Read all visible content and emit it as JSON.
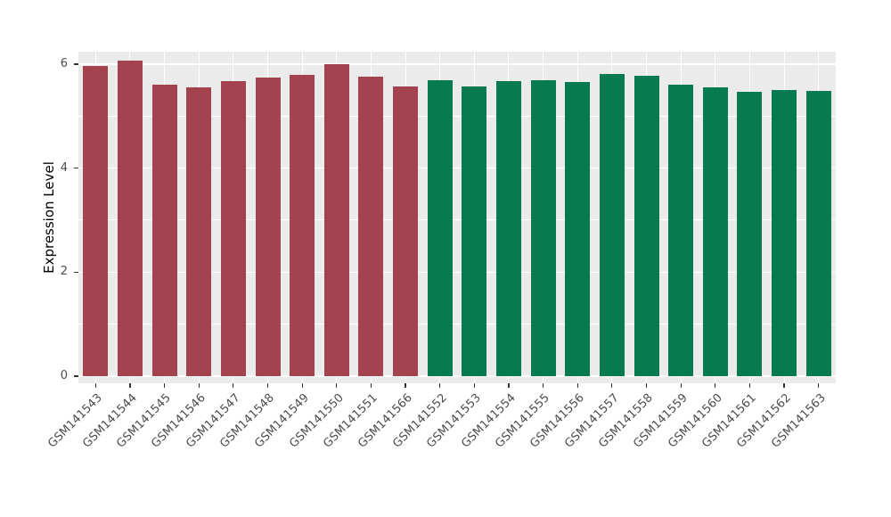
{
  "figure": {
    "background": "#FFFFFF"
  },
  "chart_data": {
    "type": "bar",
    "title": "",
    "xlabel": "",
    "ylabel": "Expression Level",
    "categories": [
      "GSM141543",
      "GSM141544",
      "GSM141545",
      "GSM141546",
      "GSM141547",
      "GSM141548",
      "GSM141549",
      "GSM141550",
      "GSM141551",
      "GSM141566",
      "GSM141552",
      "GSM141553",
      "GSM141554",
      "GSM141555",
      "GSM141556",
      "GSM141557",
      "GSM141558",
      "GSM141559",
      "GSM141560",
      "GSM141561",
      "GSM141562",
      "GSM141563"
    ],
    "values": [
      5.97,
      6.07,
      5.6,
      5.55,
      5.68,
      5.74,
      5.79,
      6.0,
      5.76,
      5.58,
      5.69,
      5.57,
      5.67,
      5.7,
      5.65,
      5.82,
      5.77,
      5.61,
      5.55,
      5.47,
      5.51,
      5.49
    ],
    "bar_groups": [
      "group1",
      "group1",
      "group1",
      "group1",
      "group1",
      "group1",
      "group1",
      "group1",
      "group1",
      "group1",
      "group2",
      "group2",
      "group2",
      "group2",
      "group2",
      "group2",
      "group2",
      "group2",
      "group2",
      "group2",
      "group2",
      "group2"
    ],
    "group_colors": {
      "group1": "#A2434F",
      "group2": "#077A4F"
    },
    "ylim": [
      0,
      6.2
    ],
    "ytick_labels": [
      "0",
      "2",
      "4",
      "6"
    ],
    "ytick_values": [
      0,
      2,
      4,
      6
    ],
    "yminor_values": [
      1,
      3,
      5
    ],
    "panel_background": "#EBEBEB",
    "grid_color": "#FFFFFF",
    "axis_text_color": "#4D4D4D",
    "legend_position": "none",
    "grid": true
  }
}
